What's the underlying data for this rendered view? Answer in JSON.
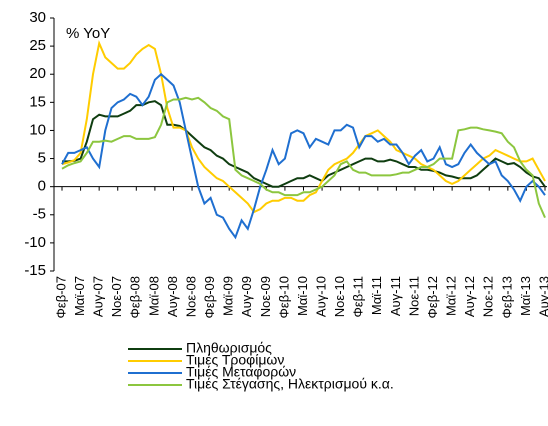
{
  "chart_data": {
    "type": "line",
    "annotation": "% YoY",
    "categories": [
      "Φεβ-07",
      null,
      null,
      "Μαϊ-07",
      null,
      null,
      "Αυγ-07",
      null,
      null,
      "Νοε-07",
      null,
      null,
      "Φεβ-08",
      null,
      null,
      "Μαϊ-08",
      null,
      null,
      "Αυγ-08",
      null,
      null,
      "Νοε-08",
      null,
      null,
      "Φεβ-09",
      null,
      null,
      "Μαϊ-09",
      null,
      null,
      "Αυγ-09",
      null,
      null,
      "Νοε-09",
      null,
      null,
      "Φεβ-10",
      null,
      null,
      "Μαϊ-10",
      null,
      null,
      "Αυγ-10",
      null,
      null,
      "Νοε-10",
      null,
      null,
      "Φεβ-11",
      null,
      null,
      "Μαϊ-11",
      null,
      null,
      "Αυγ-11",
      null,
      null,
      "Νοε-11",
      null,
      null,
      "Φεβ-12",
      null,
      null,
      "Μαϊ-12",
      null,
      null,
      "Αυγ-12",
      null,
      null,
      "Νοε-12",
      null,
      null,
      "Φεβ-13",
      null,
      null,
      "Μαϊ-13",
      null,
      null,
      "Αυγ-13"
    ],
    "series": [
      {
        "name": "Πληθωρισμός",
        "color": "#0f3d10",
        "values": [
          4.5,
          4.5,
          4.6,
          5,
          8,
          12,
          12.8,
          12.5,
          12.5,
          12.5,
          13,
          13.5,
          14.5,
          14.5,
          15,
          15.2,
          14.5,
          11,
          11,
          10.8,
          10,
          9,
          8,
          7,
          6.5,
          5.5,
          5,
          4,
          3.5,
          3,
          2.5,
          1.5,
          1,
          0.5,
          0,
          0,
          0.5,
          1,
          1.5,
          1.5,
          2,
          1.5,
          1,
          2,
          2.5,
          3,
          3.5,
          4,
          4.5,
          5,
          5,
          4.5,
          4.5,
          4.8,
          4.5,
          4,
          3.5,
          3.5,
          3,
          3,
          2.8,
          2.5,
          2,
          1.8,
          1.5,
          1.5,
          1.5,
          2,
          3,
          4,
          5,
          4.5,
          4,
          4.2,
          3.5,
          2.5,
          1.8,
          1.5,
          0
        ]
      },
      {
        "name": "Τιμές Τροφίμων",
        "color": "#ffcc00",
        "values": [
          4,
          4.3,
          4.7,
          6,
          12,
          20,
          25.5,
          23,
          22,
          21,
          21,
          22,
          23.5,
          24.5,
          25.2,
          24.5,
          20,
          14,
          10.5,
          10.5,
          10,
          7,
          5,
          3.5,
          2.5,
          1.5,
          1,
          0,
          -1,
          -2,
          -3,
          -4.5,
          -4,
          -3,
          -2.5,
          -2.5,
          -2,
          -2,
          -2.5,
          -2.5,
          -1.5,
          -1,
          1,
          3,
          4,
          4.5,
          5,
          6,
          7.5,
          9,
          9.5,
          10,
          9,
          8,
          6.5,
          6,
          5.5,
          5,
          4,
          3.5,
          3,
          2,
          1,
          0.5,
          1,
          2,
          3,
          4,
          5,
          5.5,
          6.5,
          6,
          5.5,
          5,
          4.5,
          4.5,
          5,
          3,
          1
        ]
      },
      {
        "name": "Τιμές Μεταφορών",
        "color": "#1f6fd0",
        "values": [
          4,
          6,
          6,
          6.5,
          7,
          5,
          3.5,
          10,
          14,
          15,
          15.5,
          16.5,
          16,
          14.5,
          16,
          19,
          20,
          19,
          18,
          15,
          10,
          5,
          0,
          -3,
          -2,
          -5,
          -5.5,
          -7.5,
          -9,
          -6,
          -7.5,
          -4,
          0,
          3,
          6.5,
          4,
          5,
          9.5,
          10,
          9.5,
          7,
          8.5,
          8,
          7.5,
          10,
          10,
          11,
          10.5,
          7,
          9,
          9,
          8,
          8.5,
          7.5,
          7.5,
          6,
          4,
          5.5,
          6.5,
          4.5,
          5,
          7,
          4,
          3.5,
          4,
          6,
          7.5,
          6,
          5,
          4,
          4.5,
          2,
          1,
          -0.5,
          -2.5,
          0,
          1,
          0,
          -1.5
        ]
      },
      {
        "name": "Τιμές Στέγασης, Ηλεκτρισμού κ.α.",
        "color": "#8cc63f",
        "values": [
          3.2,
          3.8,
          4.2,
          4.5,
          6,
          8,
          8,
          8.2,
          8,
          8.5,
          9,
          9,
          8.5,
          8.5,
          8.5,
          8.8,
          11,
          15,
          15.5,
          15.5,
          15.8,
          15.5,
          15.8,
          15,
          14,
          13.5,
          12.5,
          12,
          3,
          2,
          1.5,
          1,
          0.5,
          -0.5,
          -1,
          -1,
          -1.5,
          -1.5,
          -1.5,
          -1,
          -1,
          -0.5,
          0,
          1,
          2,
          4,
          4.5,
          3,
          2.5,
          2.5,
          2,
          2,
          2,
          2,
          2.2,
          2.5,
          2.5,
          3,
          3.5,
          3.5,
          4,
          5,
          5,
          5,
          10,
          10.2,
          10.5,
          10.5,
          10.2,
          10,
          9.8,
          9.5,
          8,
          7,
          4.5,
          3,
          2,
          -3,
          -5.5
        ]
      }
    ],
    "ylim": [
      -15,
      30
    ],
    "yticks": [
      30,
      25,
      20,
      15,
      10,
      5,
      0,
      -5,
      -10,
      -15
    ],
    "grid": false
  }
}
